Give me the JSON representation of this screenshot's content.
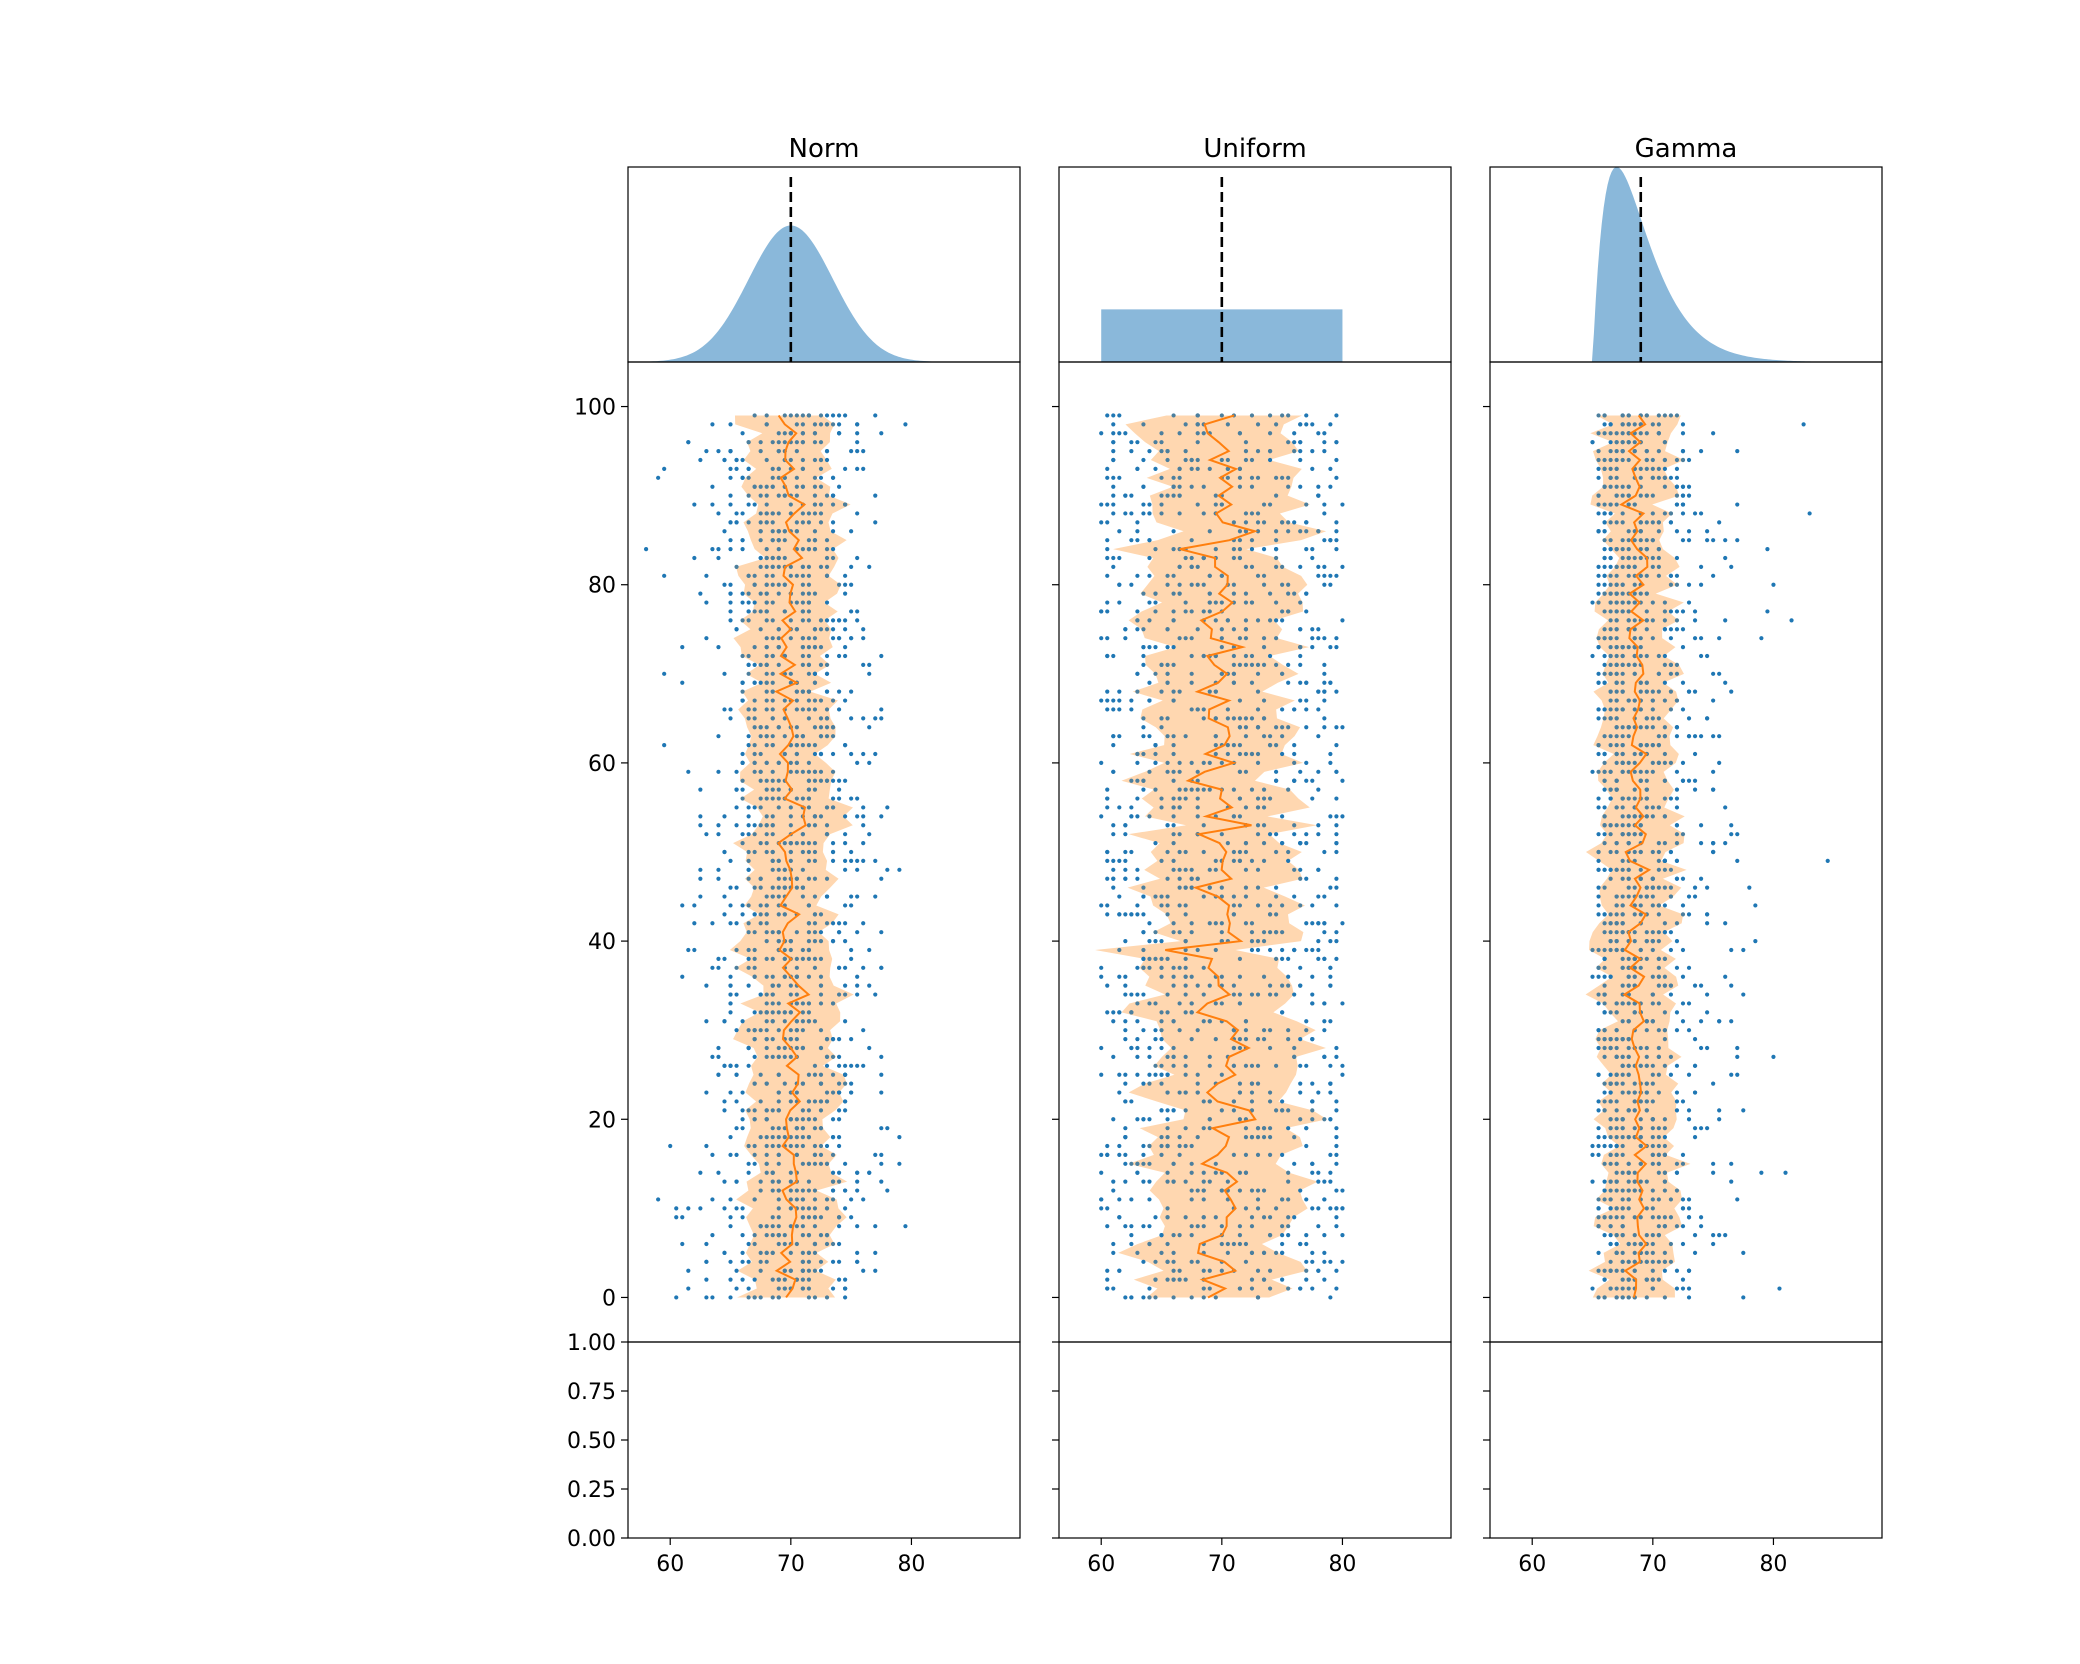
{
  "chart_data": [
    {
      "type": "scatter",
      "title": "Norm",
      "distribution": {
        "kind": "normal",
        "mean": 70,
        "sd": 3.5
      },
      "marker_x": 70,
      "n_rows": 100,
      "per_row_samples": 15,
      "center_line": {
        "mean": 70,
        "wobble": 0.6
      },
      "band": {
        "half_width": 3.5,
        "wobble": 0.7
      },
      "colors": {
        "density": "#8ab8da",
        "points": "#1f77b4",
        "line": "#ff7f0e",
        "band": "#ffd7b0"
      }
    },
    {
      "type": "scatter",
      "title": "Uniform",
      "distribution": {
        "kind": "uniform",
        "low": 60,
        "high": 80
      },
      "marker_x": 70,
      "n_rows": 100,
      "per_row_samples": 15,
      "center_line": {
        "mean": 70,
        "wobble": 1.2
      },
      "band": {
        "half_width": 5.8,
        "wobble": 0.9
      },
      "colors": {
        "density": "#8ab8da",
        "points": "#1f77b4",
        "line": "#ff7f0e",
        "band": "#ffd7b0"
      }
    },
    {
      "type": "scatter",
      "title": "Gamma",
      "distribution": {
        "kind": "gamma",
        "shape": 2,
        "scale": 2,
        "loc": 65
      },
      "marker_x": 69,
      "n_rows": 100,
      "per_row_samples": 15,
      "center_line": {
        "mean": 68.7,
        "wobble": 0.5
      },
      "band": {
        "half_width": 2.9,
        "wobble": 0.8
      },
      "colors": {
        "density": "#8ab8da",
        "points": "#1f77b4",
        "line": "#ff7f0e",
        "band": "#ffd7b0"
      }
    }
  ],
  "axes": {
    "x_range": [
      56.5,
      89
    ],
    "x_ticks": [
      "60",
      "70",
      "80"
    ],
    "main_y_range": [
      -5,
      105
    ],
    "main_y_ticks": [
      "0",
      "20",
      "40",
      "60",
      "80",
      "100"
    ],
    "bottom_y_range": [
      0,
      1
    ],
    "bottom_y_ticks": [
      "0.00",
      "0.25",
      "0.50",
      "0.75",
      "1.00"
    ]
  }
}
